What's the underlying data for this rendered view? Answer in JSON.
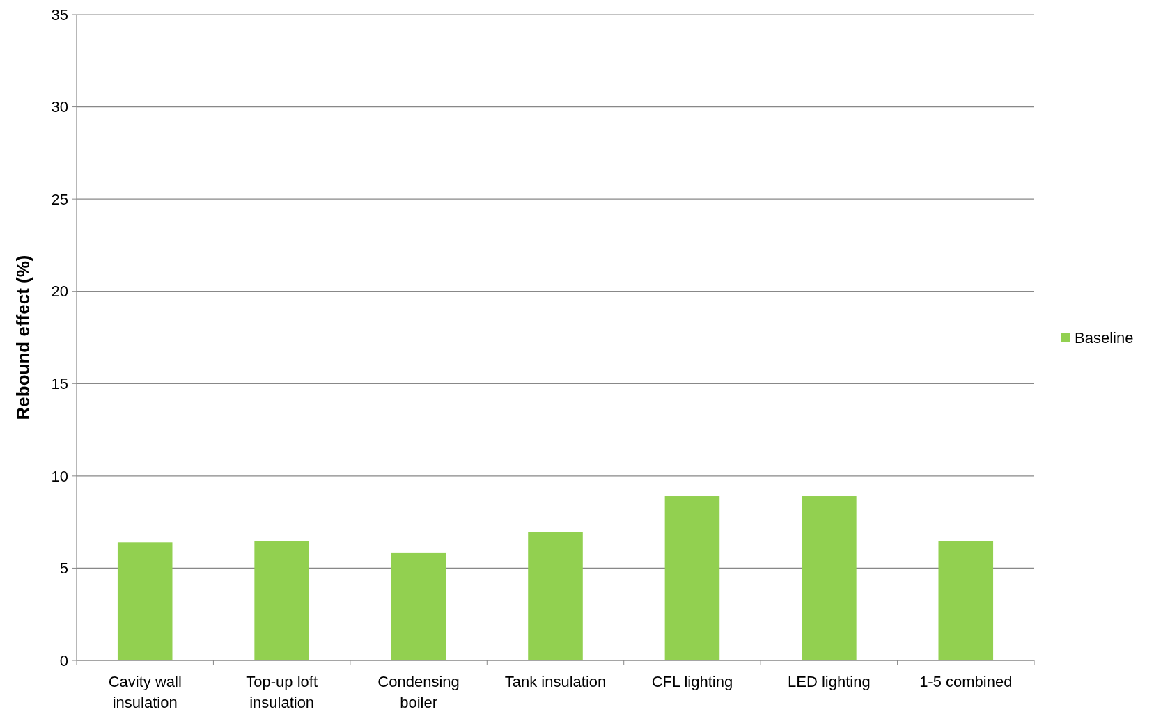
{
  "chart_data": {
    "type": "bar",
    "ylabel": "Rebound effect (%)",
    "categories": [
      "Cavity wall insulation",
      "Top-up loft insulation",
      "Condensing boiler",
      "Tank insulation",
      "CFL lighting",
      "LED lighting",
      "1-5 combined"
    ],
    "series": [
      {
        "name": "Baseline",
        "color": "#92d050",
        "values": [
          6.4,
          6.45,
          5.85,
          6.95,
          8.9,
          8.9,
          6.45
        ]
      }
    ],
    "ylim": [
      0,
      35
    ],
    "yticks": [
      0,
      5,
      10,
      15,
      20,
      25,
      30,
      35
    ],
    "grid": "y",
    "legend": "right"
  }
}
